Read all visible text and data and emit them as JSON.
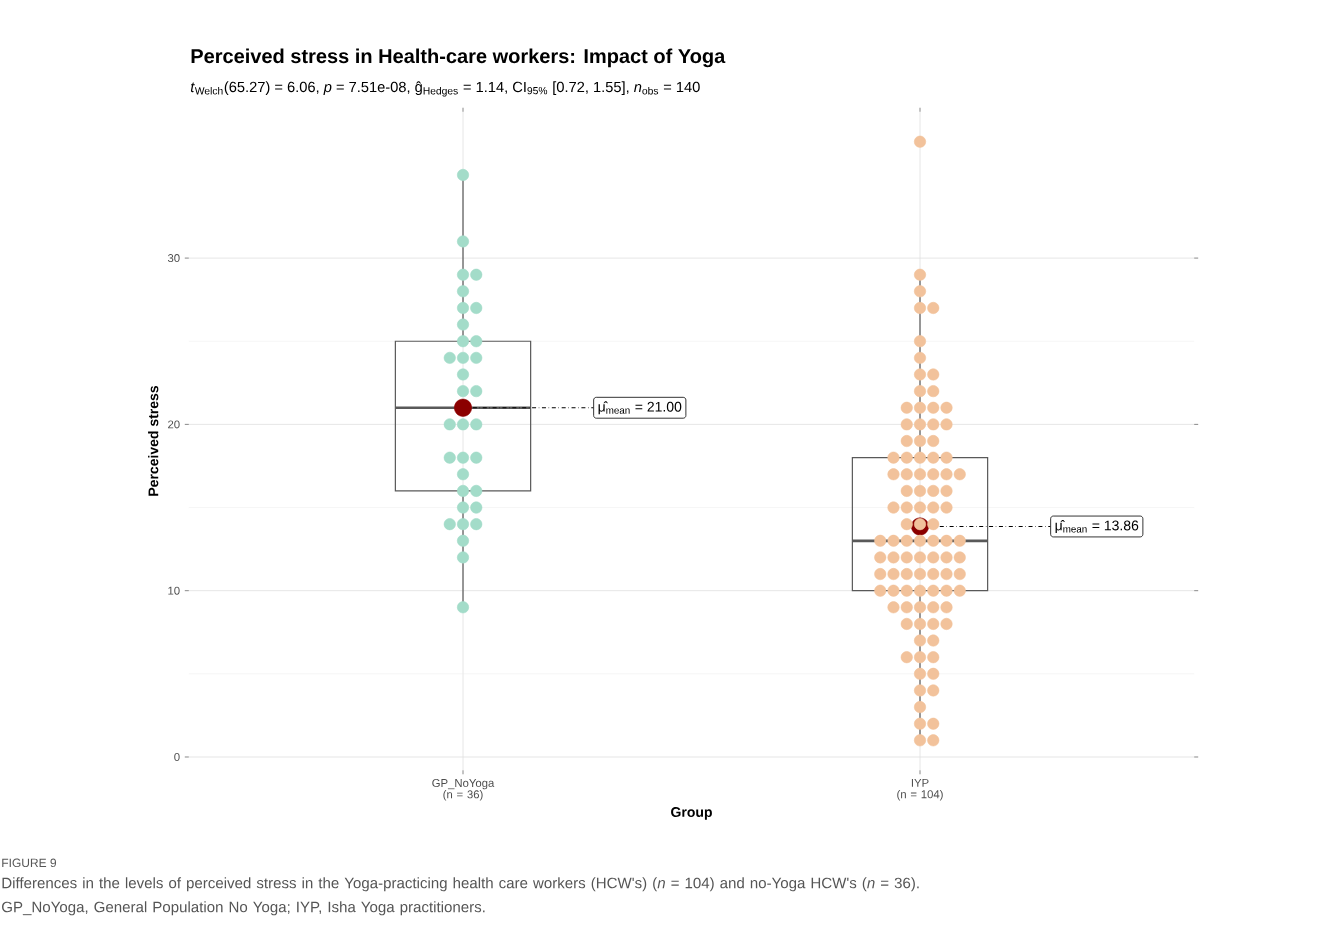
{
  "chart_data": {
    "type": "box",
    "title": "Perceived stress in Health-care workers: Impact of Yoga",
    "subtitle": "*t*$_{Welch}$(65.27) = 6.06, *p* = 7.51e-08, ĝ$_{Hedges}$ = 1.14, CI$_{95%}$ [0.72, 1.55], *n*$_{obs}$ = 140",
    "xlabel": "Group",
    "ylabel": "Perceived stress",
    "categories": [
      "GP_NoYoga (n = 36)",
      "IYP (n = 104)"
    ],
    "boxes": [
      {
        "low": 9,
        "q1": 16,
        "median": 21,
        "q3": 25,
        "high": 35,
        "mean": 21.0
      },
      {
        "low": 1,
        "q1": 10,
        "median": 13,
        "q3": 18,
        "high": 29,
        "mean": 13.86
      }
    ],
    "series": [
      {
        "type": "scatter",
        "color": "#a3dcc9",
        "x": [
          "GP_NoYoga (n = 36)",
          "GP_NoYoga (n = 36)",
          "GP_NoYoga (n = 36)",
          "GP_NoYoga (n = 36)",
          "GP_NoYoga (n = 36)",
          "GP_NoYoga (n = 36)",
          "GP_NoYoga (n = 36)",
          "GP_NoYoga (n = 36)",
          "GP_NoYoga (n = 36)",
          "GP_NoYoga (n = 36)",
          "GP_NoYoga (n = 36)",
          "GP_NoYoga (n = 36)",
          "GP_NoYoga (n = 36)",
          "GP_NoYoga (n = 36)",
          "GP_NoYoga (n = 36)",
          "GP_NoYoga (n = 36)",
          "GP_NoYoga (n = 36)",
          "GP_NoYoga (n = 36)",
          "GP_NoYoga (n = 36)",
          "GP_NoYoga (n = 36)",
          "GP_NoYoga (n = 36)",
          "GP_NoYoga (n = 36)",
          "GP_NoYoga (n = 36)",
          "GP_NoYoga (n = 36)",
          "GP_NoYoga (n = 36)",
          "GP_NoYoga (n = 36)",
          "GP_NoYoga (n = 36)",
          "GP_NoYoga (n = 36)",
          "GP_NoYoga (n = 36)",
          "GP_NoYoga (n = 36)",
          "GP_NoYoga (n = 36)",
          "GP_NoYoga (n = 36)",
          "GP_NoYoga (n = 36)"
        ],
        "values": [
          35,
          31,
          29,
          29,
          28,
          27,
          27,
          26,
          25,
          25,
          24,
          24,
          24,
          23,
          22,
          22,
          20,
          20,
          20,
          18,
          18,
          18,
          17,
          16,
          16,
          15,
          15,
          14,
          14,
          14,
          13,
          12,
          9
        ]
      },
      {
        "type": "scatter",
        "color": "#f2c29b",
        "x": [
          "IYP (n = 104)",
          "IYP (n = 104)",
          "IYP (n = 104)",
          "IYP (n = 104)",
          "IYP (n = 104)",
          "IYP (n = 104)",
          "IYP (n = 104)",
          "IYP (n = 104)",
          "IYP (n = 104)",
          "IYP (n = 104)",
          "IYP (n = 104)",
          "IYP (n = 104)",
          "IYP (n = 104)",
          "IYP (n = 104)",
          "IYP (n = 104)",
          "IYP (n = 104)",
          "IYP (n = 104)",
          "IYP (n = 104)",
          "IYP (n = 104)",
          "IYP (n = 104)",
          "IYP (n = 104)",
          "IYP (n = 104)",
          "IYP (n = 104)",
          "IYP (n = 104)",
          "IYP (n = 104)",
          "IYP (n = 104)",
          "IYP (n = 104)",
          "IYP (n = 104)",
          "IYP (n = 104)",
          "IYP (n = 104)",
          "IYP (n = 104)",
          "IYP (n = 104)",
          "IYP (n = 104)",
          "IYP (n = 104)",
          "IYP (n = 104)",
          "IYP (n = 104)",
          "IYP (n = 104)",
          "IYP (n = 104)",
          "IYP (n = 104)",
          "IYP (n = 104)",
          "IYP (n = 104)",
          "IYP (n = 104)",
          "IYP (n = 104)",
          "IYP (n = 104)",
          "IYP (n = 104)",
          "IYP (n = 104)",
          "IYP (n = 104)",
          "IYP (n = 104)",
          "IYP (n = 104)",
          "IYP (n = 104)",
          "IYP (n = 104)",
          "IYP (n = 104)",
          "IYP (n = 104)",
          "IYP (n = 104)",
          "IYP (n = 104)",
          "IYP (n = 104)",
          "IYP (n = 104)",
          "IYP (n = 104)",
          "IYP (n = 104)",
          "IYP (n = 104)",
          "IYP (n = 104)",
          "IYP (n = 104)",
          "IYP (n = 104)",
          "IYP (n = 104)",
          "IYP (n = 104)",
          "IYP (n = 104)",
          "IYP (n = 104)",
          "IYP (n = 104)",
          "IYP (n = 104)",
          "IYP (n = 104)",
          "IYP (n = 104)",
          "IYP (n = 104)",
          "IYP (n = 104)",
          "IYP (n = 104)",
          "IYP (n = 104)",
          "IYP (n = 104)",
          "IYP (n = 104)",
          "IYP (n = 104)",
          "IYP (n = 104)",
          "IYP (n = 104)",
          "IYP (n = 104)",
          "IYP (n = 104)",
          "IYP (n = 104)",
          "IYP (n = 104)",
          "IYP (n = 104)",
          "IYP (n = 104)",
          "IYP (n = 104)",
          "IYP (n = 104)",
          "IYP (n = 104)",
          "IYP (n = 104)",
          "IYP (n = 104)",
          "IYP (n = 104)",
          "IYP (n = 104)",
          "IYP (n = 104)",
          "IYP (n = 104)",
          "IYP (n = 104)"
        ],
        "values": [
          37,
          29,
          28,
          27,
          27,
          25,
          24,
          23,
          23,
          22,
          22,
          21,
          21,
          21,
          21,
          20,
          20,
          20,
          20,
          19,
          19,
          19,
          18,
          18,
          18,
          18,
          18,
          17,
          17,
          17,
          17,
          17,
          17,
          16,
          16,
          16,
          16,
          15,
          15,
          15,
          15,
          15,
          14,
          14,
          14,
          13,
          13,
          13,
          13,
          13,
          13,
          13,
          12,
          12,
          12,
          12,
          12,
          12,
          12,
          11,
          11,
          11,
          11,
          11,
          11,
          11,
          10,
          10,
          10,
          10,
          10,
          10,
          10,
          9,
          9,
          9,
          9,
          9,
          8,
          8,
          8,
          8,
          7,
          7,
          6,
          6,
          6,
          5,
          5,
          4,
          4,
          3,
          2,
          2,
          1,
          1
        ]
      }
    ],
    "ylim": [
      -0.8,
      38.8
    ],
    "yticks": [
      0,
      10,
      20,
      30
    ],
    "grid": true,
    "marker": "circle",
    "annotations": [
      {
        "text": "μ̂$_{mean}$ = 21.00",
        "x": "GP_NoYoga (n = 36)",
        "y": 21.0
      },
      {
        "text": "μ̂$_{mean}$ = 13.86",
        "x": "IYP (n = 104)",
        "y": 13.86
      },
      "FIGURE 9",
      "Differences in the levels of perceived stress in the Yoga-practicing health care workers (HCW's) (*n* = 104) and no-Yoga HCW's (*n* = 36). GP_NoYoga, General Population No Yoga; IYP, Isha Yoga practitioners."
    ]
  }
}
